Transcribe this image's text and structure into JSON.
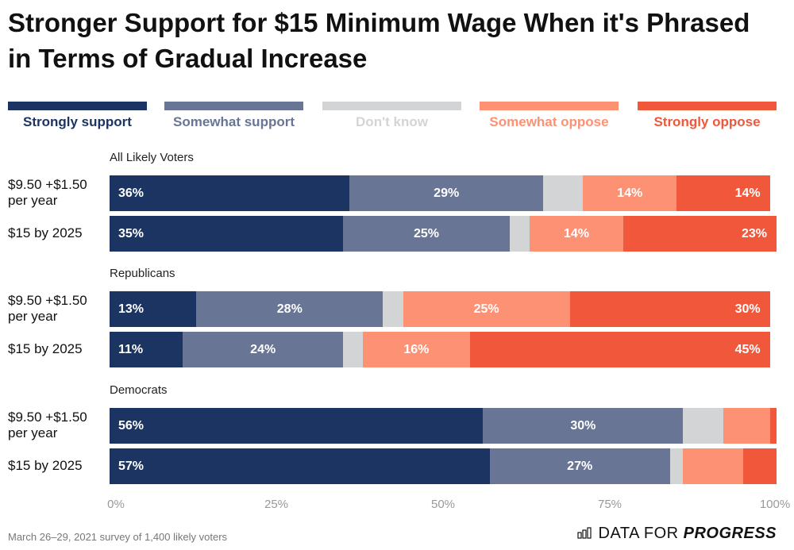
{
  "chart_data": {
    "type": "bar",
    "orientation": "horizontal-stacked",
    "title": "Stronger Support for $15 Minimum Wage When it's Phrased in Terms of Gradual Increase",
    "legend_position": "top",
    "series": [
      {
        "name": "Strongly support",
        "color": "#1c3461"
      },
      {
        "name": "Somewhat support",
        "color": "#697595"
      },
      {
        "name": "Don't know",
        "color": "#d3d4d6"
      },
      {
        "name": "Somewhat oppose",
        "color": "#fd9174"
      },
      {
        "name": "Strongly oppose",
        "color": "#f1573a"
      }
    ],
    "groups": [
      {
        "name": "All Likely Voters",
        "rows": [
          {
            "label": "$9.50 +$1.50 per year",
            "values": [
              36,
              29,
              6,
              14,
              14
            ]
          },
          {
            "label": "$15 by 2025",
            "values": [
              35,
              25,
              3,
              14,
              23
            ]
          }
        ]
      },
      {
        "name": "Republicans",
        "rows": [
          {
            "label": "$9.50 +$1.50 per year",
            "values": [
              13,
              28,
              3,
              25,
              30
            ]
          },
          {
            "label": "$15 by 2025",
            "values": [
              11,
              24,
              3,
              16,
              45
            ]
          }
        ]
      },
      {
        "name": "Democrats",
        "rows": [
          {
            "label": "$9.50 +$1.50 per year",
            "values": [
              56,
              30,
              6,
              7,
              1
            ]
          },
          {
            "label": "$15 by 2025",
            "values": [
              57,
              27,
              2,
              9,
              5
            ]
          }
        ]
      }
    ],
    "xlim": [
      0,
      100
    ],
    "x_ticks": [
      "0%",
      "25%",
      "50%",
      "75%",
      "100%"
    ],
    "grid": false
  },
  "footer": {
    "source": "March 26–29, 2021 survey of 1,400 likely voters",
    "logo_text": "DATA FOR PROGRESS"
  }
}
